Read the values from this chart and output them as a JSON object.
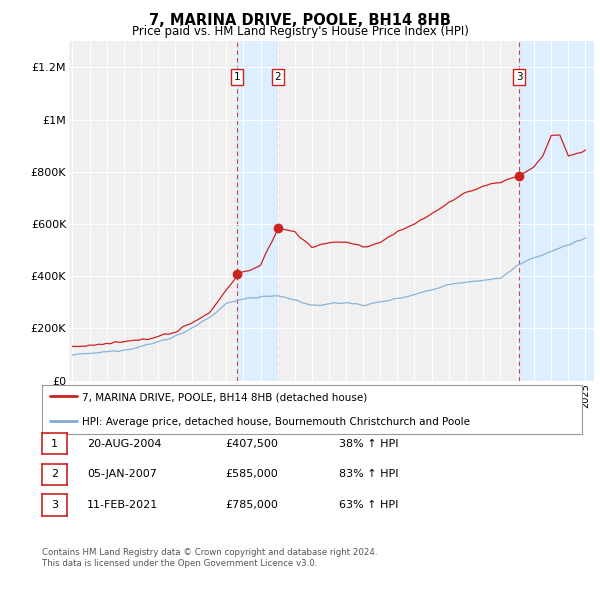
{
  "title": "7, MARINA DRIVE, POOLE, BH14 8HB",
  "subtitle": "Price paid vs. HM Land Registry's House Price Index (HPI)",
  "ylabel_ticks": [
    "£0",
    "£200K",
    "£400K",
    "£600K",
    "£800K",
    "£1M",
    "£1.2M"
  ],
  "ylim": [
    0,
    1300000
  ],
  "yticks": [
    0,
    200000,
    400000,
    600000,
    800000,
    1000000,
    1200000
  ],
  "hpi_color": "#7eadd4",
  "price_color": "#cc2222",
  "vline_color": "#cc4444",
  "shade_color": "#ddeeff",
  "transaction_dates": [
    2004.64,
    2007.02,
    2021.12
  ],
  "transaction_prices": [
    407500,
    585000,
    785000
  ],
  "transaction_labels": [
    "1",
    "2",
    "3"
  ],
  "legend_line1": "7, MARINA DRIVE, POOLE, BH14 8HB (detached house)",
  "legend_line2": "HPI: Average price, detached house, Bournemouth Christchurch and Poole",
  "table_entries": [
    [
      "1",
      "20-AUG-2004",
      "£407,500",
      "38% ↑ HPI"
    ],
    [
      "2",
      "05-JAN-2007",
      "£585,000",
      "83% ↑ HPI"
    ],
    [
      "3",
      "11-FEB-2021",
      "£785,000",
      "63% ↑ HPI"
    ]
  ],
  "footnote": "Contains HM Land Registry data © Crown copyright and database right 2024.\nThis data is licensed under the Open Government Licence v3.0.",
  "background_color": "#ffffff",
  "plot_bg_color": "#f0f0f0"
}
